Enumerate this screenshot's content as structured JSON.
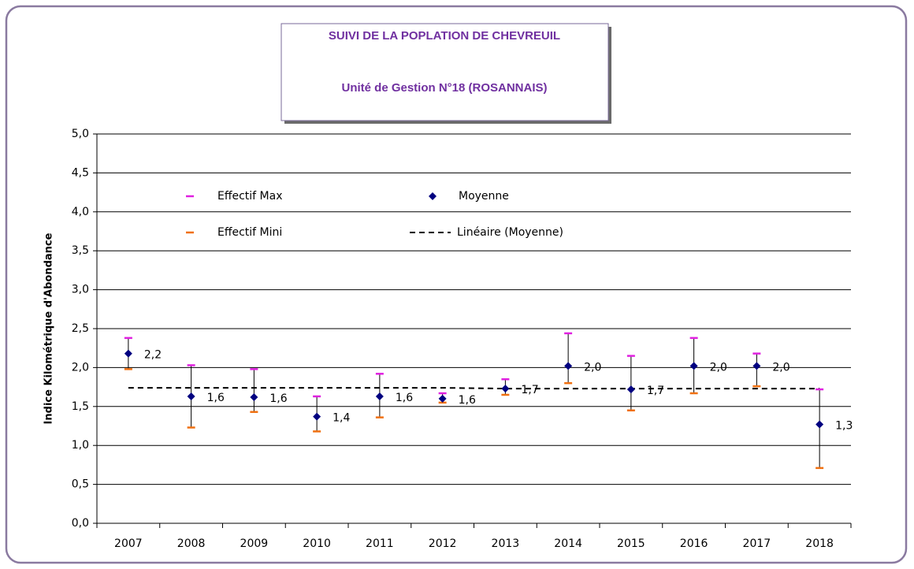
{
  "chart_data": {
    "type": "errorbar",
    "title": "SUIVI DE LA POPLATION DE CHEVREUIL",
    "subtitle": "Unité de Gestion N°18 (ROSANNAIS)",
    "y_label": "Indice Kilométrique d'Abondance",
    "categories": [
      "2007",
      "2008",
      "2009",
      "2010",
      "2011",
      "2012",
      "2013",
      "2014",
      "2015",
      "2016",
      "2017",
      "2018"
    ],
    "series": [
      {
        "name": "Effectif Max",
        "color": "#e020e0",
        "values": [
          2.38,
          2.03,
          1.98,
          1.63,
          1.92,
          1.67,
          1.85,
          2.44,
          2.15,
          2.38,
          2.18,
          1.72
        ]
      },
      {
        "name": "Effectif Mini",
        "color": "#f07010",
        "values": [
          1.98,
          1.23,
          1.43,
          1.18,
          1.36,
          1.55,
          1.65,
          1.8,
          1.45,
          1.67,
          1.76,
          0.71
        ]
      },
      {
        "name": "Moyenne",
        "color": "#000080",
        "values": [
          2.18,
          1.63,
          1.62,
          1.37,
          1.63,
          1.6,
          1.73,
          2.02,
          1.72,
          2.02,
          2.02,
          1.27
        ],
        "value_labels": [
          "2,2",
          "1,6",
          "1,6",
          "1,4",
          "1,6",
          "1,6",
          "1,7",
          "2,0",
          "1,7",
          "2,0",
          "2,0",
          "1,3"
        ]
      },
      {
        "name": "Linéaire (Moyenne)",
        "color": "#000000",
        "values": [
          1.74,
          1.74,
          1.74,
          1.74,
          1.74,
          1.74,
          1.73,
          1.73,
          1.73,
          1.73,
          1.73,
          1.73
        ]
      }
    ],
    "ylim": [
      0,
      5
    ],
    "yticks": [
      {
        "value": 0,
        "label": "0,0"
      },
      {
        "value": 0.5,
        "label": "0,5"
      },
      {
        "value": 1,
        "label": "1,0"
      },
      {
        "value": 1.5,
        "label": "1,5"
      },
      {
        "value": 2,
        "label": "2,0"
      },
      {
        "value": 2.5,
        "label": "2,5"
      },
      {
        "value": 3,
        "label": "3,0"
      },
      {
        "value": 3.5,
        "label": "3,5"
      },
      {
        "value": 4,
        "label": "4,0"
      },
      {
        "value": 4.5,
        "label": "4,5"
      },
      {
        "value": 5,
        "label": "5,0"
      }
    ],
    "grid": true
  }
}
